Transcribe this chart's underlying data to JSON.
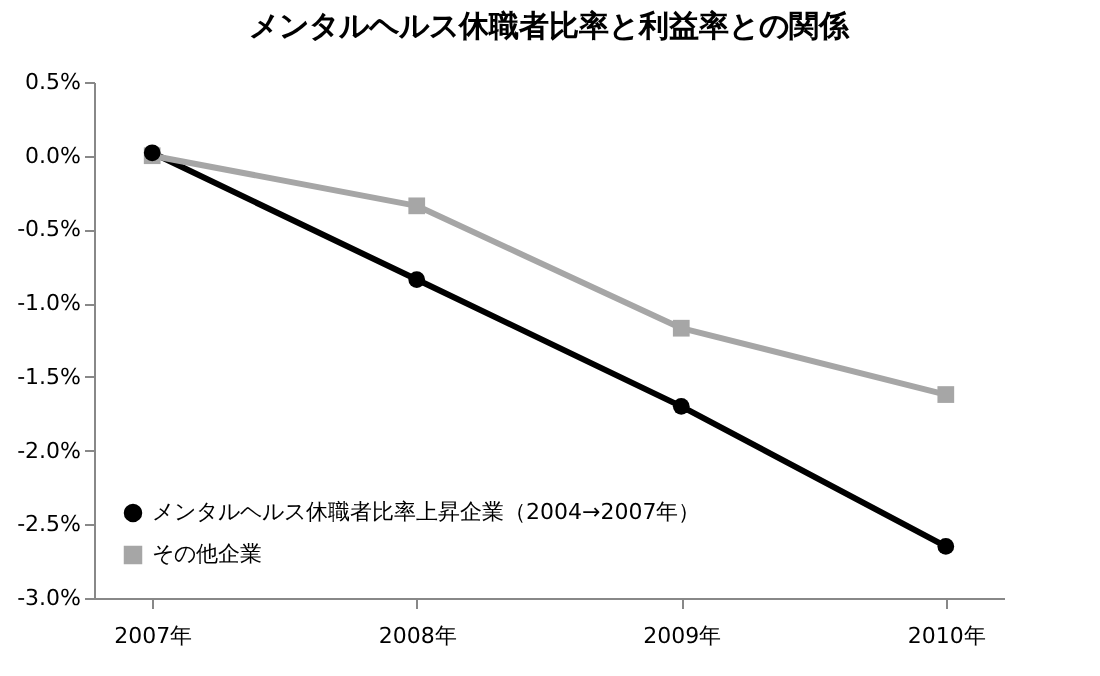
{
  "chart_data": {
    "type": "line",
    "title": "メンタルヘルス休職者比率と利益率との関係",
    "categories": [
      "2007年",
      "2008年",
      "2009年",
      "2010年"
    ],
    "series": [
      {
        "name": "メンタルヘルス休職者比率上昇企業（2004→2007年）",
        "color": "#000000",
        "marker": "circle",
        "values": [
          0.02,
          -0.84,
          -1.7,
          -2.65
        ]
      },
      {
        "name": "その他企業",
        "color": "#a6a6a6",
        "marker": "square",
        "values": [
          0.0,
          -0.34,
          -1.17,
          -1.62
        ]
      }
    ],
    "ylim": [
      -3.0,
      0.5
    ],
    "yticks": [
      {
        "value": 0.5,
        "label": "0.5%"
      },
      {
        "value": 0,
        "label": "0.0%"
      },
      {
        "value": -0.5,
        "label": "-0.5%"
      },
      {
        "value": -1.0,
        "label": "-1.0%"
      },
      {
        "value": -1.5,
        "label": "-1.5%"
      },
      {
        "value": -2.0,
        "label": "-2.0%"
      },
      {
        "value": -2.5,
        "label": "-2.5%"
      },
      {
        "value": -3.0,
        "label": "-3.0%"
      }
    ],
    "grid": false,
    "legend": "bottom left",
    "line_style": "solid"
  }
}
